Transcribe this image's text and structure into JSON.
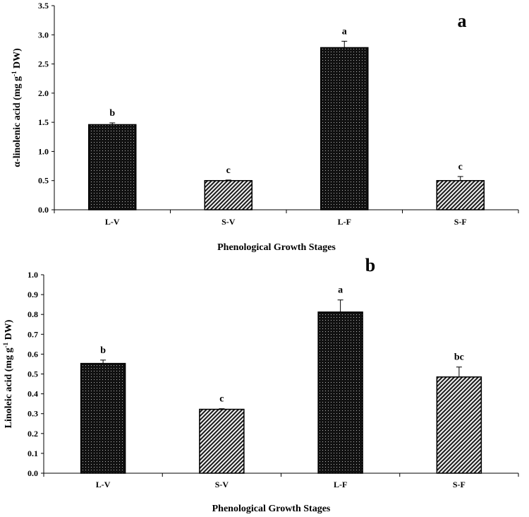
{
  "chart_data": [
    {
      "type": "bar",
      "panel_label": "a",
      "categories": [
        "L-V",
        "S-V",
        "L-F",
        "S-F"
      ],
      "values": [
        1.46,
        0.5,
        2.78,
        0.5
      ],
      "errors": [
        0.03,
        0.01,
        0.11,
        0.07
      ],
      "significance": [
        "b",
        "c",
        "a",
        "c"
      ],
      "ylabel_pre": "α-linolenic acid (mg g",
      "ylabel_sup": "-1",
      "ylabel_post": " DW)",
      "xlabel": "Phenological Growth Stages",
      "ylim": [
        0,
        3.5
      ],
      "yticks": [
        0,
        0.5,
        1.0,
        1.5,
        2.0,
        2.5,
        3.0,
        3.5
      ],
      "ytick_labels": [
        "0.0",
        "0.5",
        "1.0",
        "1.5",
        "2.0",
        "2.5",
        "3.0",
        "3.5"
      ],
      "patterns": [
        "dots",
        "hatch",
        "dots",
        "hatch"
      ]
    },
    {
      "type": "bar",
      "panel_label": "b",
      "categories": [
        "L-V",
        "S-V",
        "L-F",
        "S-F"
      ],
      "values": [
        0.553,
        0.322,
        0.812,
        0.485
      ],
      "errors": [
        0.017,
        0.003,
        0.061,
        0.05
      ],
      "significance": [
        "b",
        "c",
        "a",
        "bc"
      ],
      "ylabel_pre": "Linoleic acid (mg g",
      "ylabel_sup": "-1",
      "ylabel_post": " DW)",
      "xlabel": "Phenological Growth Stages",
      "ylim": [
        0,
        1.0
      ],
      "yticks": [
        0,
        0.1,
        0.2,
        0.3,
        0.4,
        0.5,
        0.6,
        0.7,
        0.8,
        0.9,
        1.0
      ],
      "ytick_labels": [
        "0.0",
        "0.1",
        "0.2",
        "0.3",
        "0.4",
        "0.5",
        "0.6",
        "0.7",
        "0.8",
        "0.9",
        "1.0"
      ],
      "patterns": [
        "dots",
        "hatch",
        "dots",
        "hatch"
      ]
    }
  ]
}
